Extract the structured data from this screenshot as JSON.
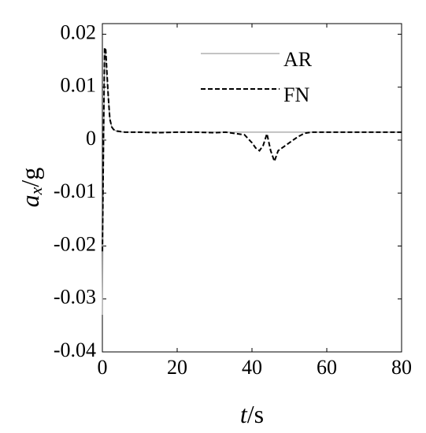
{
  "chart_data": {
    "type": "line",
    "ylabel": [
      "a",
      "x",
      "/g"
    ],
    "xlabel": [
      "t",
      "/s"
    ],
    "x": [
      0,
      0.3,
      0.6,
      0.9,
      1.2,
      1.6,
      2,
      2.5,
      3,
      4,
      6,
      10,
      15,
      20,
      25,
      30,
      33,
      36,
      38,
      40,
      41,
      42,
      43,
      44,
      45,
      46,
      47,
      48,
      50,
      52,
      54,
      56,
      60,
      70,
      80
    ],
    "series": [
      {
        "name": "AR",
        "color": "#a0a0a0",
        "dash": false,
        "values": [
          -0.033,
          -0.005,
          0.017,
          0.016,
          0.012,
          0.008,
          0.004,
          0.0025,
          0.002,
          0.0016,
          0.0015,
          0.0015,
          0.0015,
          0.0015,
          0.0015,
          0.0015,
          0.0015,
          0.0015,
          0.0015,
          0.0015,
          0.0015,
          0.0015,
          0.0015,
          0.0015,
          0.0015,
          0.0015,
          0.0015,
          0.0015,
          0.0015,
          0.0015,
          0.0015,
          0.0015,
          0.0015,
          0.0015,
          0.0015
        ]
      },
      {
        "name": "FN",
        "color": "#000000",
        "dash": true,
        "values": [
          -0.021,
          0,
          0.0175,
          0.017,
          0.013,
          0.008,
          0.004,
          0.0025,
          0.002,
          0.0017,
          0.0015,
          0.0015,
          0.0014,
          0.0015,
          0.0015,
          0.0014,
          0.0015,
          0.0012,
          0.001,
          -0.0005,
          -0.0015,
          -0.002,
          -0.001,
          0.0012,
          -0.002,
          -0.004,
          -0.002,
          -0.0015,
          -0.0005,
          0.0005,
          0.0013,
          0.0015,
          0.0015,
          0.0015,
          0.0015
        ]
      }
    ],
    "xlim": [
      0,
      80
    ],
    "xticks": [
      0,
      20,
      40,
      60,
      80
    ],
    "ylim": [
      -0.04,
      0.022
    ],
    "yticks": [
      -0.04,
      -0.03,
      -0.02,
      -0.01,
      0,
      0.01,
      0.02
    ],
    "legend": "top-right"
  }
}
